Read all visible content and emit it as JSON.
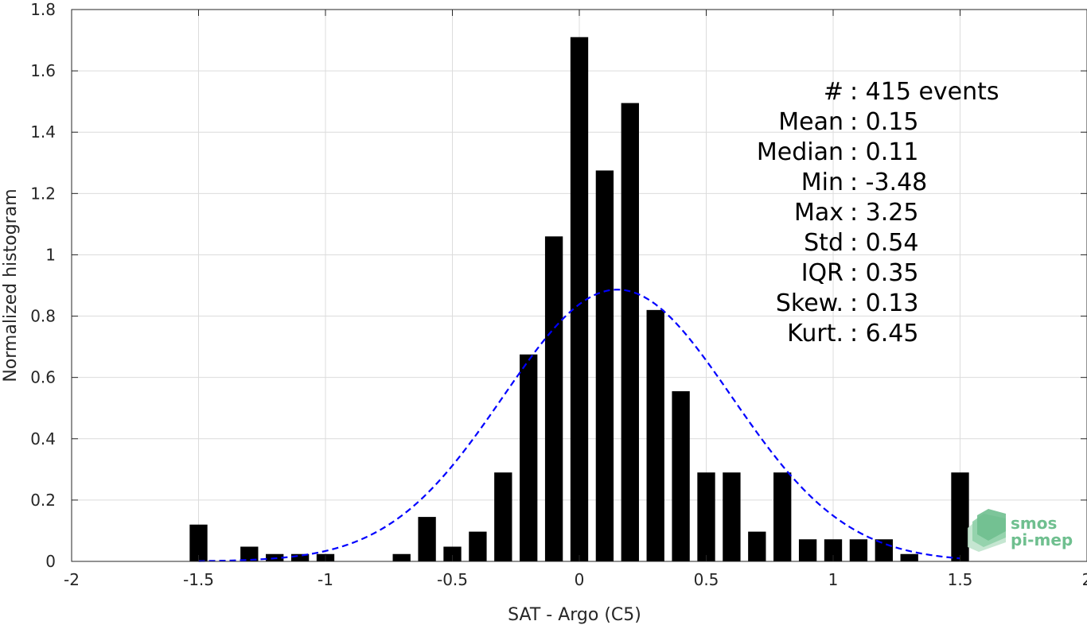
{
  "chart_data": {
    "type": "bar",
    "xlabel": "SAT - Argo (C5)",
    "ylabel": "Normalized histogram",
    "xlim": [
      -2,
      2
    ],
    "ylim": [
      0,
      1.8
    ],
    "grid": true,
    "x_ticks": [
      "-2",
      "-1.5",
      "-1",
      "-0.5",
      "0",
      "0.5",
      "1",
      "1.5",
      "2"
    ],
    "y_ticks": [
      "0",
      "0.2",
      "0.4",
      "0.6",
      "0.8",
      "1",
      "1.2",
      "1.4",
      "1.6",
      "1.8"
    ],
    "bar_color": "#000000",
    "bar_width": 0.07,
    "bins": [
      {
        "x": -1.5,
        "y": 0.12
      },
      {
        "x": -1.3,
        "y": 0.048
      },
      {
        "x": -1.2,
        "y": 0.024
      },
      {
        "x": -1.1,
        "y": 0.024
      },
      {
        "x": -1.0,
        "y": 0.024
      },
      {
        "x": -0.7,
        "y": 0.024
      },
      {
        "x": -0.6,
        "y": 0.145
      },
      {
        "x": -0.5,
        "y": 0.048
      },
      {
        "x": -0.4,
        "y": 0.097
      },
      {
        "x": -0.3,
        "y": 0.29
      },
      {
        "x": -0.2,
        "y": 0.675
      },
      {
        "x": -0.1,
        "y": 1.06
      },
      {
        "x": 0.0,
        "y": 1.71
      },
      {
        "x": 0.1,
        "y": 1.275
      },
      {
        "x": 0.2,
        "y": 1.495
      },
      {
        "x": 0.3,
        "y": 0.82
      },
      {
        "x": 0.4,
        "y": 0.555
      },
      {
        "x": 0.5,
        "y": 0.29
      },
      {
        "x": 0.6,
        "y": 0.29
      },
      {
        "x": 0.7,
        "y": 0.097
      },
      {
        "x": 0.8,
        "y": 0.29
      },
      {
        "x": 0.9,
        "y": 0.072
      },
      {
        "x": 1.0,
        "y": 0.072
      },
      {
        "x": 1.1,
        "y": 0.072
      },
      {
        "x": 1.2,
        "y": 0.072
      },
      {
        "x": 1.3,
        "y": 0.024
      },
      {
        "x": 1.5,
        "y": 0.29
      }
    ],
    "fit_curve": {
      "type": "gaussian",
      "color": "#0000ff",
      "style": "dashed",
      "mean": 0.15,
      "std": 0.45,
      "x_range": [
        -1.5,
        1.5
      ]
    },
    "stats": [
      {
        "label": "#",
        "value": ": 415 events"
      },
      {
        "label": "Mean",
        "value": ": 0.15"
      },
      {
        "label": "Median",
        "value": ": 0.11"
      },
      {
        "label": "Min",
        "value": ": -3.48"
      },
      {
        "label": "Max",
        "value": ": 3.25"
      },
      {
        "label": "Std",
        "value": ": 0.54"
      },
      {
        "label": "IQR",
        "value": ": 0.35"
      },
      {
        "label": "Skew.",
        "value": ": 0.13"
      },
      {
        "label": "Kurt.",
        "value": ": 6.45"
      }
    ]
  },
  "logo": {
    "line1": "smos",
    "line2": "pi-mep",
    "color": "#6fbf8f"
  }
}
